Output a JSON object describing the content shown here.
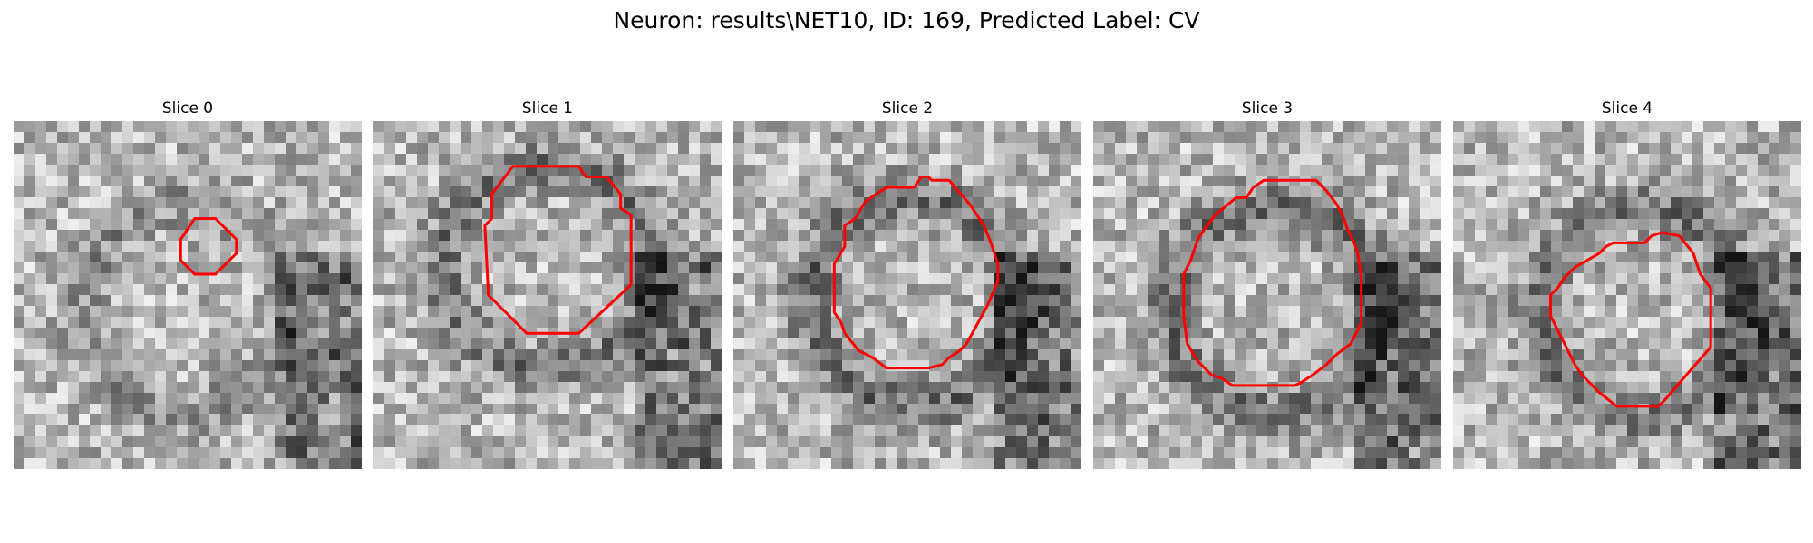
{
  "figure": {
    "title": "Neuron: results\\NET10, ID: 169, Predicted Label: CV",
    "outline_color": "#ff0000",
    "colormap": "grayscale",
    "panels": [
      {
        "label": "Slice 0",
        "seed": 11,
        "ring": 0.42,
        "center": [
          0.5,
          0.54
        ],
        "contour": [
          [
            0.52,
            0.28
          ],
          [
            0.58,
            0.28
          ],
          [
            0.64,
            0.34
          ],
          [
            0.64,
            0.38
          ],
          [
            0.58,
            0.44
          ],
          [
            0.52,
            0.44
          ],
          [
            0.48,
            0.4
          ],
          [
            0.48,
            0.34
          ]
        ]
      },
      {
        "label": "Slice 1",
        "seed": 23,
        "ring": 0.7,
        "center": [
          0.5,
          0.42
        ],
        "contour": [
          [
            0.4,
            0.13
          ],
          [
            0.59,
            0.13
          ],
          [
            0.61,
            0.16
          ],
          [
            0.67,
            0.16
          ],
          [
            0.71,
            0.21
          ],
          [
            0.71,
            0.25
          ],
          [
            0.74,
            0.27
          ],
          [
            0.74,
            0.47
          ],
          [
            0.59,
            0.61
          ],
          [
            0.44,
            0.61
          ],
          [
            0.33,
            0.5
          ],
          [
            0.32,
            0.3
          ],
          [
            0.34,
            0.28
          ],
          [
            0.34,
            0.21
          ]
        ]
      },
      {
        "label": "Slice 2",
        "seed": 37,
        "ring": 0.8,
        "center": [
          0.52,
          0.52
        ],
        "contour": [
          [
            0.44,
            0.19
          ],
          [
            0.52,
            0.19
          ],
          [
            0.54,
            0.16
          ],
          [
            0.56,
            0.16
          ],
          [
            0.57,
            0.17
          ],
          [
            0.62,
            0.17
          ],
          [
            0.68,
            0.24
          ],
          [
            0.7,
            0.27
          ],
          [
            0.72,
            0.3
          ],
          [
            0.74,
            0.35
          ],
          [
            0.76,
            0.41
          ],
          [
            0.76,
            0.46
          ],
          [
            0.73,
            0.53
          ],
          [
            0.67,
            0.64
          ],
          [
            0.65,
            0.66
          ],
          [
            0.62,
            0.68
          ],
          [
            0.6,
            0.7
          ],
          [
            0.56,
            0.71
          ],
          [
            0.44,
            0.71
          ],
          [
            0.4,
            0.68
          ],
          [
            0.36,
            0.66
          ],
          [
            0.32,
            0.61
          ],
          [
            0.31,
            0.58
          ],
          [
            0.29,
            0.55
          ],
          [
            0.29,
            0.41
          ],
          [
            0.32,
            0.36
          ],
          [
            0.32,
            0.3
          ],
          [
            0.35,
            0.28
          ],
          [
            0.38,
            0.23
          ]
        ]
      },
      {
        "label": "Slice 3",
        "seed": 53,
        "ring": 0.78,
        "center": [
          0.52,
          0.54
        ],
        "contour": [
          [
            0.41,
            0.22
          ],
          [
            0.44,
            0.22
          ],
          [
            0.46,
            0.19
          ],
          [
            0.49,
            0.17
          ],
          [
            0.64,
            0.17
          ],
          [
            0.67,
            0.2
          ],
          [
            0.7,
            0.24
          ],
          [
            0.72,
            0.28
          ],
          [
            0.73,
            0.31
          ],
          [
            0.75,
            0.35
          ],
          [
            0.76,
            0.38
          ],
          [
            0.77,
            0.45
          ],
          [
            0.77,
            0.58
          ],
          [
            0.74,
            0.64
          ],
          [
            0.7,
            0.67
          ],
          [
            0.67,
            0.7
          ],
          [
            0.63,
            0.73
          ],
          [
            0.6,
            0.75
          ],
          [
            0.58,
            0.76
          ],
          [
            0.4,
            0.76
          ],
          [
            0.37,
            0.74
          ],
          [
            0.34,
            0.73
          ],
          [
            0.3,
            0.69
          ],
          [
            0.27,
            0.64
          ],
          [
            0.26,
            0.56
          ],
          [
            0.26,
            0.44
          ],
          [
            0.28,
            0.4
          ],
          [
            0.3,
            0.34
          ],
          [
            0.32,
            0.31
          ],
          [
            0.35,
            0.27
          ]
        ]
      },
      {
        "label": "Slice 4",
        "seed": 71,
        "ring": 0.75,
        "center": [
          0.55,
          0.55
        ],
        "contour": [
          [
            0.42,
            0.38
          ],
          [
            0.44,
            0.36
          ],
          [
            0.46,
            0.35
          ],
          [
            0.55,
            0.35
          ],
          [
            0.57,
            0.33
          ],
          [
            0.6,
            0.32
          ],
          [
            0.65,
            0.33
          ],
          [
            0.69,
            0.38
          ],
          [
            0.7,
            0.41
          ],
          [
            0.71,
            0.44
          ],
          [
            0.74,
            0.48
          ],
          [
            0.74,
            0.65
          ],
          [
            0.67,
            0.73
          ],
          [
            0.61,
            0.8
          ],
          [
            0.59,
            0.82
          ],
          [
            0.58,
            0.82
          ],
          [
            0.47,
            0.82
          ],
          [
            0.42,
            0.78
          ],
          [
            0.37,
            0.73
          ],
          [
            0.35,
            0.7
          ],
          [
            0.32,
            0.64
          ],
          [
            0.3,
            0.6
          ],
          [
            0.28,
            0.56
          ],
          [
            0.28,
            0.5
          ],
          [
            0.3,
            0.48
          ],
          [
            0.32,
            0.45
          ],
          [
            0.35,
            0.42
          ]
        ]
      }
    ]
  }
}
